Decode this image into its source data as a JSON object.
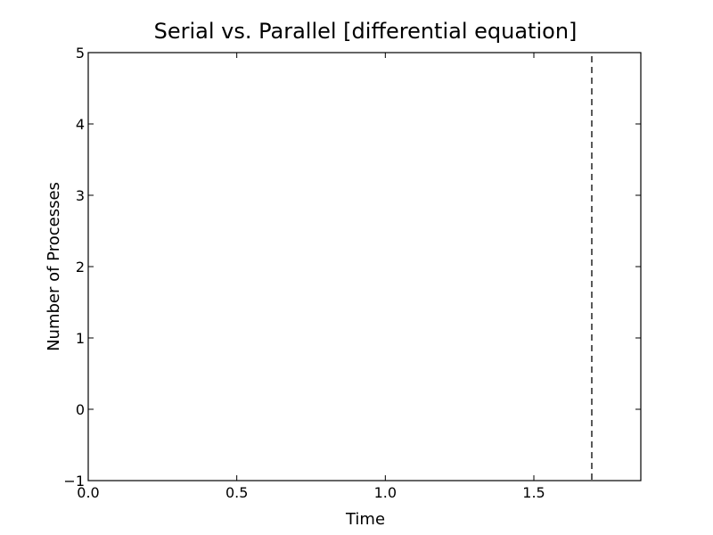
{
  "chart_data": {
    "type": "line",
    "title": "Serial vs. Parallel [differential equation]",
    "xlabel": "Time",
    "ylabel": "Number of Processes",
    "xlim": [
      0.0,
      1.86
    ],
    "ylim": [
      -1,
      5
    ],
    "x_ticks": [
      0.0,
      0.5,
      1.0,
      1.5
    ],
    "x_tick_labels": [
      "0.0",
      "0.5",
      "1.0",
      "1.5"
    ],
    "y_ticks": [
      -1,
      0,
      1,
      2,
      3,
      4,
      5
    ],
    "y_tick_labels": [
      "−1",
      "0",
      "1",
      "2",
      "3",
      "4",
      "5"
    ],
    "grid": false,
    "series": [],
    "annotations": [
      {
        "type": "vline",
        "x": 1.695,
        "style": "dashed",
        "color": "#000000"
      }
    ]
  }
}
